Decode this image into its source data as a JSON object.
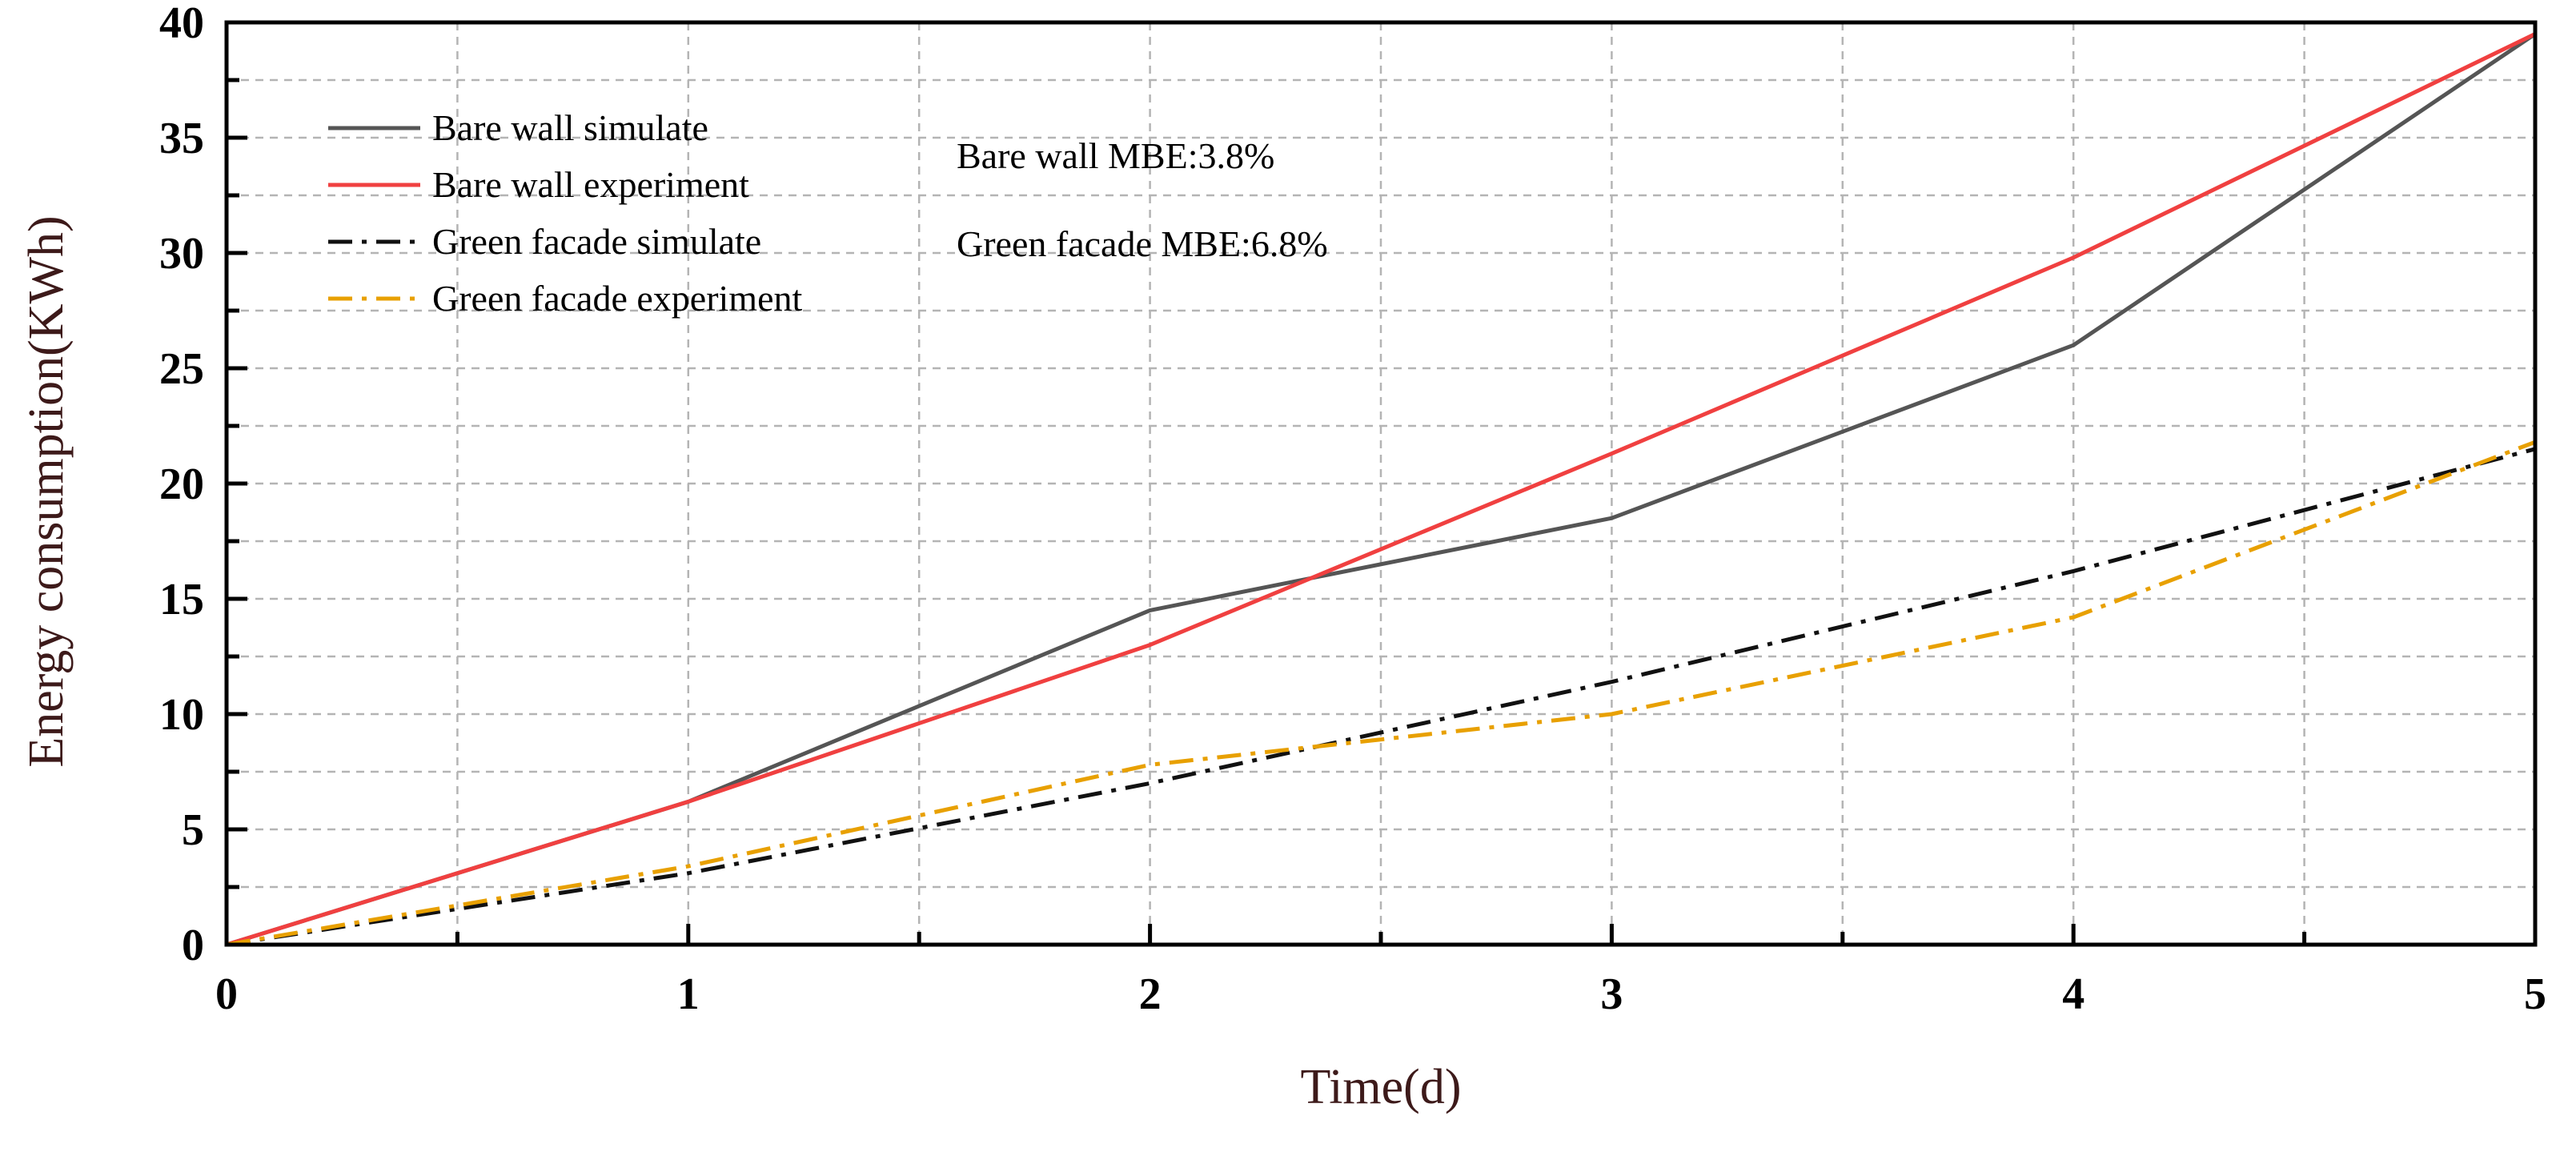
{
  "chart_data": {
    "type": "line",
    "title": "",
    "xlabel": "Time(d)",
    "ylabel": "Energy consumption(KWh)",
    "xlim": [
      0,
      5
    ],
    "ylim": [
      0,
      40
    ],
    "x_ticks": [
      "0",
      "1",
      "2",
      "3",
      "4",
      "5"
    ],
    "y_ticks": [
      "0",
      "5",
      "10",
      "15",
      "20",
      "25",
      "30",
      "35",
      "40"
    ],
    "grid": true,
    "legend_position": "top-left",
    "x": [
      0,
      1,
      2,
      3,
      4,
      5
    ],
    "series": [
      {
        "name": "Bare wall simulate",
        "values": [
          0,
          6.2,
          14.5,
          18.5,
          26.0,
          39.5
        ],
        "color": "#555555",
        "style": "solid"
      },
      {
        "name": "Bare wall experiment",
        "values": [
          0,
          6.2,
          13.0,
          21.3,
          29.8,
          39.5
        ],
        "color": "#f04040",
        "style": "solid"
      },
      {
        "name": "Green facade simulate",
        "values": [
          0,
          3.1,
          7.0,
          11.4,
          16.2,
          21.5
        ],
        "color": "#111111",
        "style": "dashdot"
      },
      {
        "name": "Green facade experiment",
        "values": [
          0,
          3.4,
          7.8,
          10.0,
          14.2,
          21.8
        ],
        "color": "#e8a000",
        "style": "dashdot"
      }
    ],
    "annotations": [
      "Bare wall MBE:3.8%",
      "Green facade MBE:6.8%"
    ]
  }
}
